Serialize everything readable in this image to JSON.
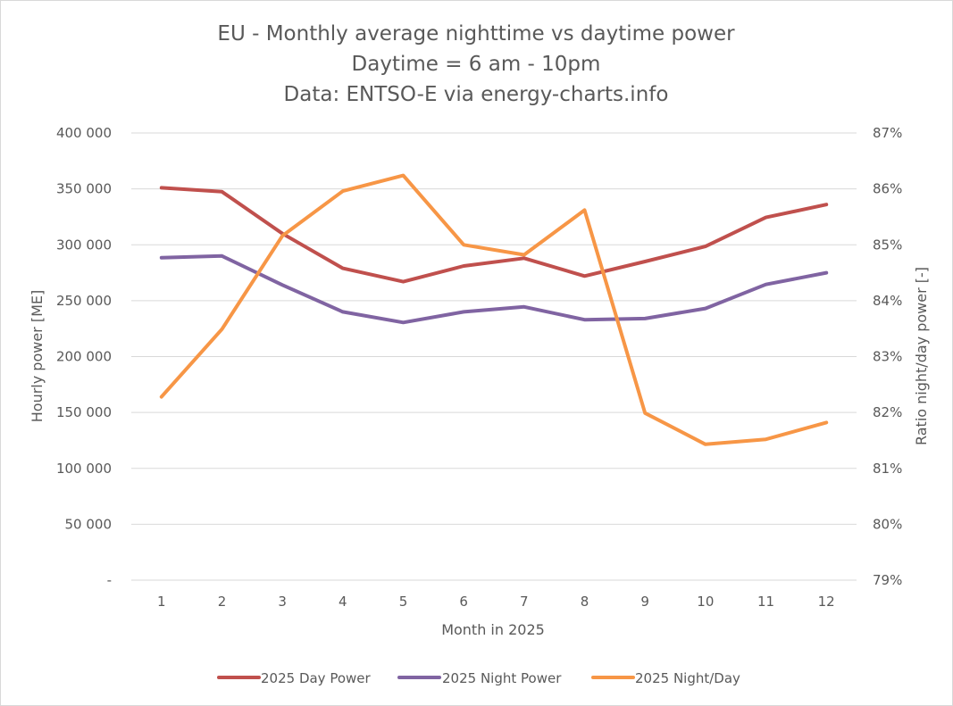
{
  "chart_data": {
    "type": "line",
    "title_lines": [
      "EU - Monthly average nighttime vs daytime power",
      "Daytime = 6 am - 10pm",
      "Data: ENTSO-E via energy-charts.info"
    ],
    "xlabel": "Month in 2025",
    "ylabel_left": "Hourly power [ME]",
    "ylabel_right": "Ratio night/day power [-]",
    "x": [
      1,
      2,
      3,
      4,
      5,
      6,
      7,
      8,
      9,
      10,
      11,
      12
    ],
    "x_tick_labels": [
      "1",
      "2",
      "3",
      "4",
      "5",
      "6",
      "7",
      "8",
      "9",
      "10",
      "11",
      "12"
    ],
    "y_left": {
      "range": [
        0,
        400000
      ],
      "ticks": [
        0,
        50000,
        100000,
        150000,
        200000,
        250000,
        300000,
        350000,
        400000
      ],
      "tick_labels": [
        "-",
        "50 000",
        "100 000",
        "150 000",
        "200 000",
        "250 000",
        "300 000",
        "350 000",
        "400 000"
      ]
    },
    "y_right": {
      "range": [
        0.79,
        0.87
      ],
      "ticks": [
        0.79,
        0.8,
        0.81,
        0.82,
        0.83,
        0.84,
        0.85,
        0.86,
        0.87
      ],
      "tick_labels": [
        "79%",
        "80%",
        "81%",
        "82%",
        "83%",
        "84%",
        "85%",
        "86%",
        "87%"
      ]
    },
    "grid": "horizontal",
    "legend_position": "bottom",
    "series": [
      {
        "name": "2025 Day Power",
        "axis": "left",
        "color": "#c0504d",
        "values": [
          351000,
          347500,
          310000,
          279000,
          267000,
          281000,
          288000,
          272000,
          285000,
          298500,
          324500,
          336000
        ]
      },
      {
        "name": "2025 Night Power",
        "axis": "left",
        "color": "#8064a2",
        "values": [
          288500,
          290000,
          264000,
          240000,
          230500,
          240000,
          244500,
          233000,
          234000,
          243000,
          264500,
          275000
        ]
      },
      {
        "name": "2025 Night/Day",
        "axis": "right",
        "color": "#f79646",
        "values": [
          0.8228,
          0.8349,
          0.8516,
          0.8596,
          0.8624,
          0.85,
          0.8482,
          0.8562,
          0.8199,
          0.8143,
          0.8152,
          0.8182
        ]
      }
    ]
  }
}
